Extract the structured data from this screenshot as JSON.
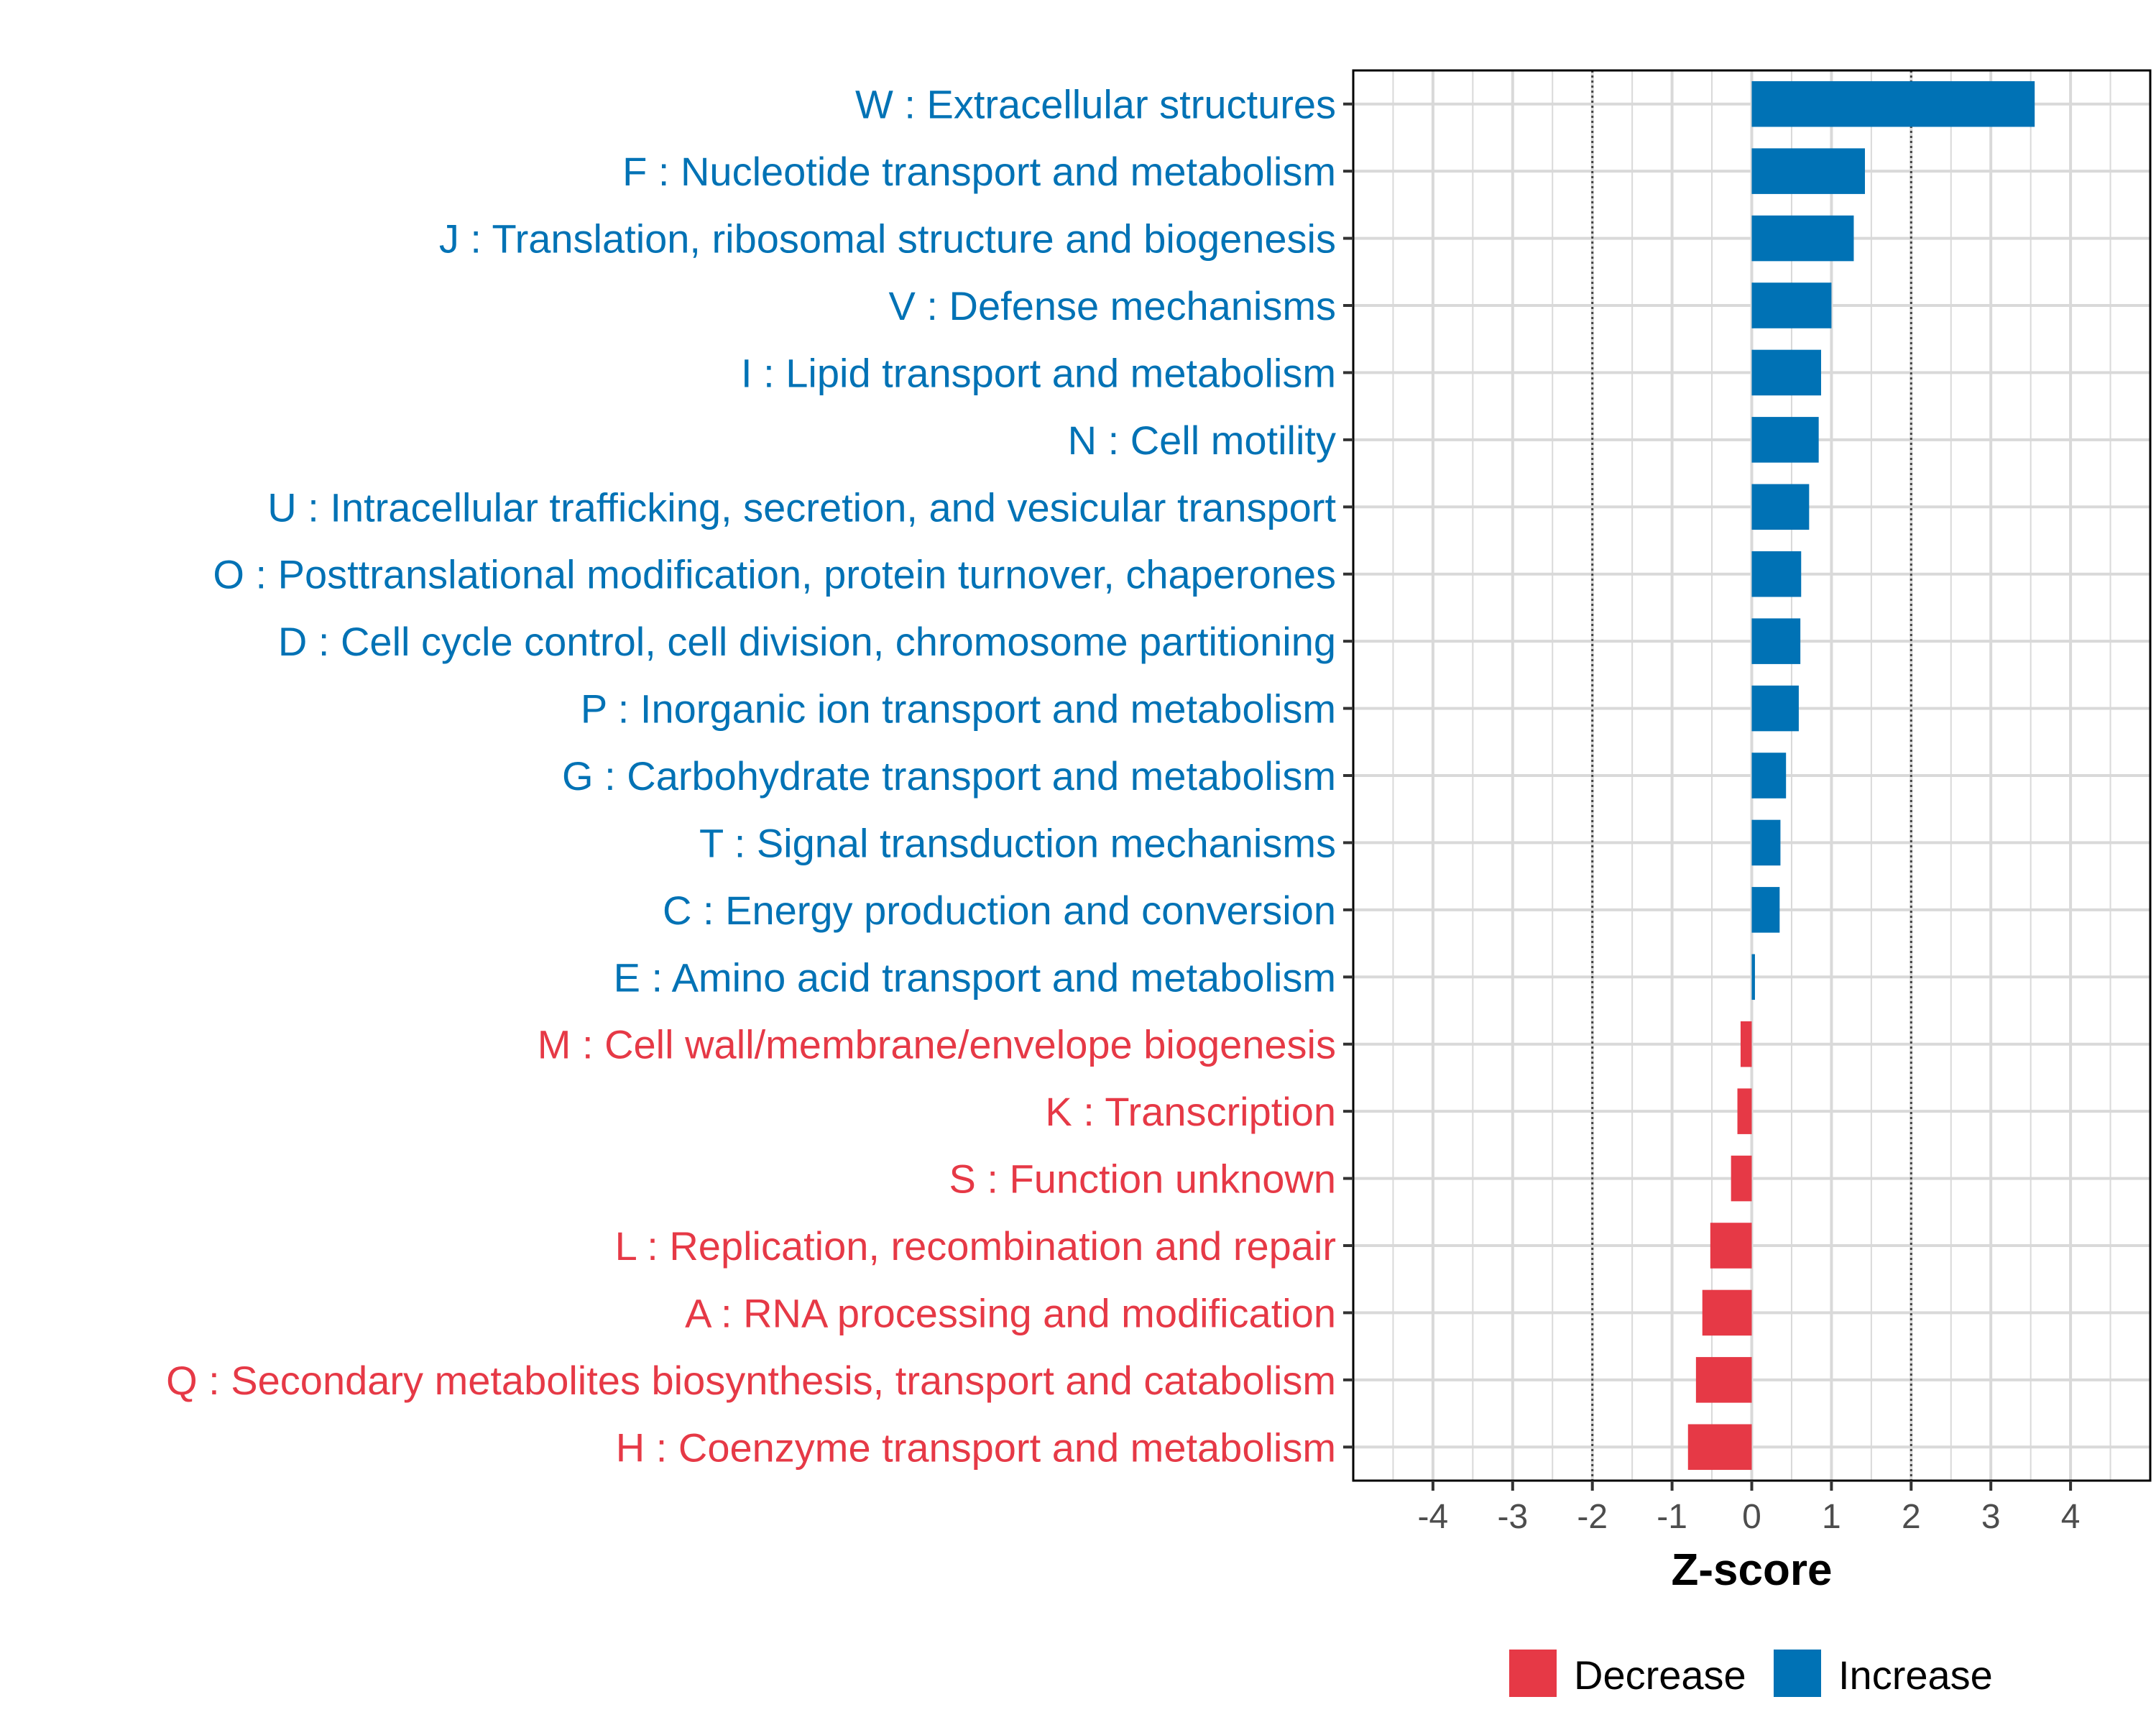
{
  "chart_data": {
    "type": "bar",
    "orientation": "horizontal",
    "title": "",
    "xlabel": "Z-score",
    "ylabel": "",
    "xlim": [
      -5,
      5
    ],
    "xticks": [
      -4,
      -3,
      -2,
      -1,
      0,
      1,
      2,
      3,
      4
    ],
    "reference_lines": [
      -2,
      2
    ],
    "grid": true,
    "legend_position": "bottom",
    "colors": {
      "Increase": "#0072B5",
      "Decrease": "#E63946"
    },
    "categories": [
      "W : Extracellular structures",
      "F : Nucleotide transport and metabolism",
      "J : Translation, ribosomal structure and biogenesis",
      "V : Defense mechanisms",
      "I : Lipid transport and metabolism",
      "N : Cell motility",
      "U : Intracellular trafficking, secretion, and vesicular transport",
      "O : Posttranslational modification, protein turnover, chaperones",
      "D : Cell cycle control, cell division, chromosome partitioning",
      "P : Inorganic ion transport and metabolism",
      "G : Carbohydrate transport and metabolism",
      "T : Signal transduction mechanisms",
      "C : Energy production and conversion",
      "E : Amino acid transport and metabolism",
      "M : Cell wall/membrane/envelope biogenesis",
      "K : Transcription",
      "S : Function unknown",
      "L : Replication, recombination and repair",
      "A : RNA processing and modification",
      "Q : Secondary metabolites biosynthesis, transport and catabolism",
      "H : Coenzyme transport and metabolism"
    ],
    "values": [
      3.55,
      1.42,
      1.28,
      1.0,
      0.87,
      0.84,
      0.72,
      0.62,
      0.61,
      0.59,
      0.43,
      0.36,
      0.35,
      0.04,
      -0.14,
      -0.18,
      -0.26,
      -0.52,
      -0.62,
      -0.7,
      -0.8
    ],
    "groups": [
      "Increase",
      "Increase",
      "Increase",
      "Increase",
      "Increase",
      "Increase",
      "Increase",
      "Increase",
      "Increase",
      "Increase",
      "Increase",
      "Increase",
      "Increase",
      "Increase",
      "Decrease",
      "Decrease",
      "Decrease",
      "Decrease",
      "Decrease",
      "Decrease",
      "Decrease"
    ],
    "legend": [
      {
        "label": "Decrease",
        "group": "Decrease"
      },
      {
        "label": "Increase",
        "group": "Increase"
      }
    ]
  }
}
